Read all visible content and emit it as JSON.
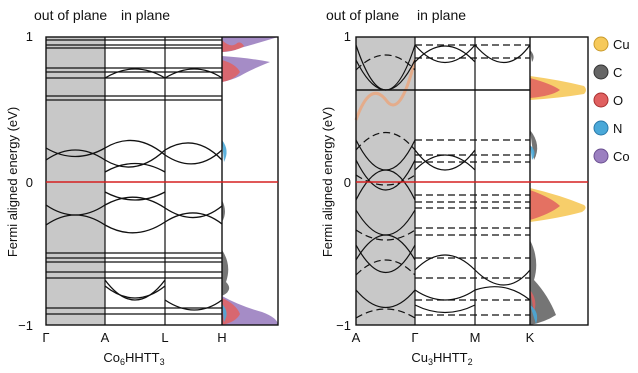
{
  "panels": [
    {
      "header_left": "out of plane",
      "header_right": "in plane",
      "ylabel": "Fermi aligned energy (eV)",
      "yticks": [
        "1",
        "0",
        "−1"
      ],
      "kpoints": [
        "Γ",
        "A",
        "L",
        "H"
      ],
      "material_base": "Co",
      "material_sub1": "6",
      "material_mid": "HHTT",
      "material_sub2": "3"
    },
    {
      "header_left": "out of plane",
      "header_right": "in plane",
      "ylabel": "Fermi aligned energy (eV)",
      "yticks": [
        "1",
        "0",
        "−1"
      ],
      "kpoints": [
        "A",
        "Γ",
        "M",
        "K"
      ],
      "material_base": "Cu",
      "material_sub1": "3",
      "material_mid": "HHTT",
      "material_sub2": "2"
    }
  ],
  "legend": [
    {
      "label": "Cu",
      "color": "#f6c95a"
    },
    {
      "label": "C",
      "color": "#666666"
    },
    {
      "label": "O",
      "color": "#e06060"
    },
    {
      "label": "N",
      "color": "#4aa8d8"
    },
    {
      "label": "Co",
      "color": "#9b7fc0"
    }
  ],
  "colors": {
    "fermi_line": "#d62020",
    "shade": "#c8c8c8",
    "band": "#111111"
  },
  "chart_data": [
    {
      "type": "line",
      "ylim": [
        -1,
        1
      ],
      "fermi_level": 0,
      "kpoints": [
        "Γ",
        "A",
        "L",
        "H"
      ],
      "shaded_segment": [
        "Γ",
        "A"
      ]
    },
    {
      "type": "line",
      "ylim": [
        -1,
        1
      ],
      "fermi_level": 0,
      "kpoints": [
        "A",
        "Γ",
        "M",
        "K"
      ],
      "shaded_segment": [
        "A",
        "Γ"
      ]
    }
  ]
}
